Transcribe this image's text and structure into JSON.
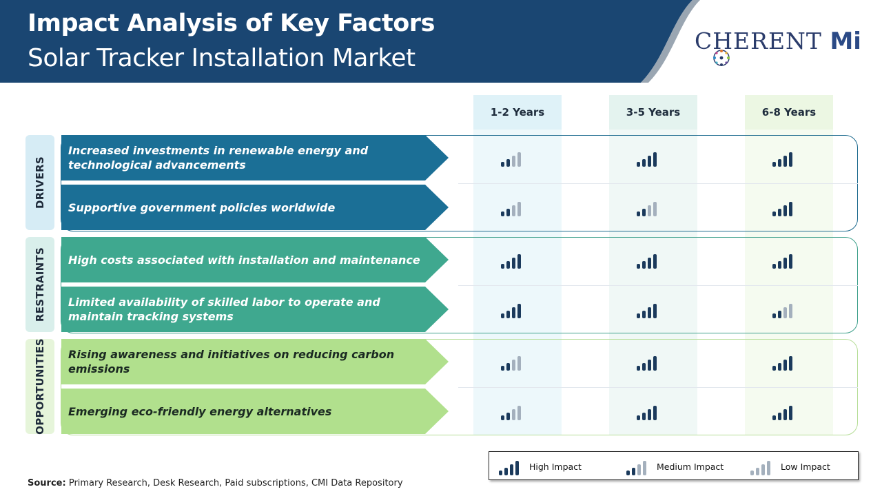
{
  "header": {
    "title": "Impact Analysis of Key Factors",
    "subtitle": "Solar Tracker Installation Market",
    "logo_main": "C",
    "logo_rest": "HERENT",
    "logo_mi": "Mi",
    "colors": {
      "navy": "#1a4672",
      "grey_stripe": "#9aa6b2"
    }
  },
  "columns": [
    "1-2 Years",
    "3-5 Years",
    "6-8 Years"
  ],
  "groups": [
    {
      "label": "DRIVERS",
      "color": "#1b6f96",
      "outline": "#1c6a8e",
      "side_bg": "#d6ecf5"
    },
    {
      "label": "RESTRAINTS",
      "color": "#3fa88f",
      "outline": "#3c9f8a",
      "side_bg": "#d9efeb"
    },
    {
      "label": "OPPORTUNITIES",
      "color": "#b1e08d",
      "outline": "#b5dd96",
      "side_bg": "#e6f5da"
    }
  ],
  "factors": [
    {
      "text": "Increased investments in renewable energy and technological advancements",
      "impacts": [
        "medium",
        "high",
        "high"
      ]
    },
    {
      "text": "Supportive government policies worldwide",
      "impacts": [
        "medium",
        "medium",
        "high"
      ]
    },
    {
      "text": "High costs associated with installation and maintenance",
      "impacts": [
        "high",
        "high",
        "high"
      ]
    },
    {
      "text": "Limited availability of skilled labor to operate and maintain tracking systems",
      "impacts": [
        "high",
        "high",
        "medium"
      ]
    },
    {
      "text": "Rising awareness and initiatives on reducing carbon emissions",
      "impacts": [
        "medium",
        "high",
        "high"
      ]
    },
    {
      "text": "Emerging eco-friendly energy alternatives",
      "impacts": [
        "medium",
        "high",
        "high"
      ]
    }
  ],
  "legend": {
    "high": "High Impact",
    "medium": "Medium Impact",
    "low": "Low Impact"
  },
  "source": {
    "label": "Source:",
    "text": "Primary Research, Desk Research, Paid subscriptions, CMI Data Repository"
  }
}
